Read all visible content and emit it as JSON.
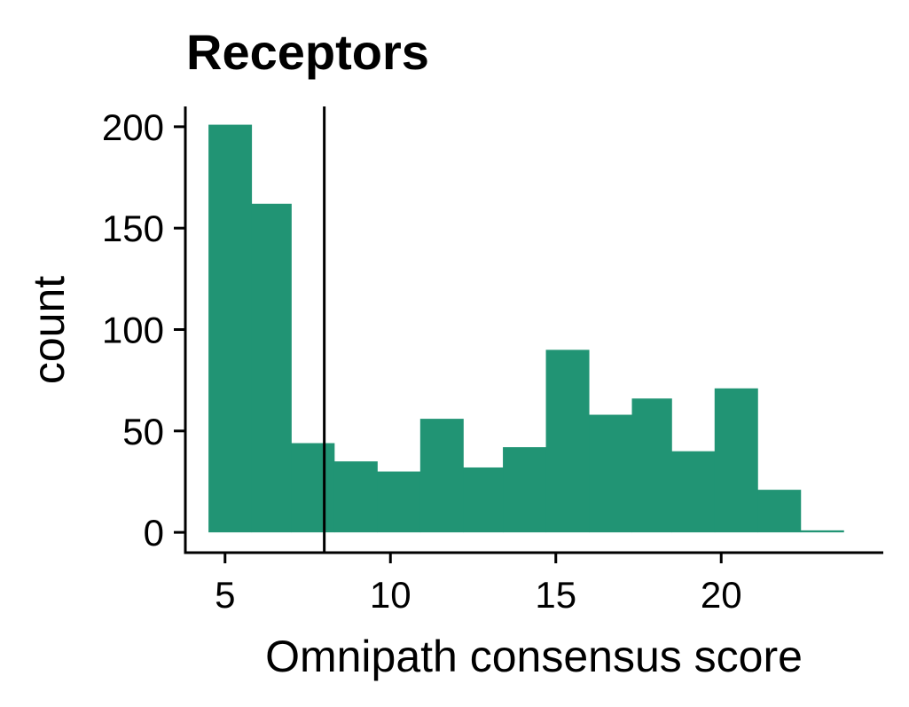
{
  "chart_data": {
    "type": "bar",
    "subtype": "histogram",
    "title": "Receptors",
    "xlabel": "Omnipath consensus score",
    "ylabel": "count",
    "xlim": [
      3.8,
      24.9
    ],
    "ylim": [
      -10,
      210
    ],
    "xticks": [
      5,
      10,
      15,
      20
    ],
    "yticks": [
      0,
      50,
      100,
      150,
      200
    ],
    "bins": [
      {
        "x0": 4.5,
        "x1": 5.8,
        "count": 201
      },
      {
        "x0": 5.8,
        "x1": 7.0,
        "count": 162
      },
      {
        "x0": 7.0,
        "x1": 8.3,
        "count": 44
      },
      {
        "x0": 8.3,
        "x1": 9.6,
        "count": 35
      },
      {
        "x0": 9.6,
        "x1": 10.9,
        "count": 30
      },
      {
        "x0": 10.9,
        "x1": 12.2,
        "count": 56
      },
      {
        "x0": 12.2,
        "x1": 13.4,
        "count": 32
      },
      {
        "x0": 13.4,
        "x1": 14.7,
        "count": 42
      },
      {
        "x0": 14.7,
        "x1": 16.0,
        "count": 90
      },
      {
        "x0": 16.0,
        "x1": 17.3,
        "count": 58
      },
      {
        "x0": 17.3,
        "x1": 18.5,
        "count": 66
      },
      {
        "x0": 18.5,
        "x1": 19.8,
        "count": 40
      },
      {
        "x0": 19.8,
        "x1": 21.1,
        "count": 71
      },
      {
        "x0": 21.1,
        "x1": 22.4,
        "count": 21
      },
      {
        "x0": 22.4,
        "x1": 23.7,
        "count": 1
      }
    ],
    "vline_x": 8,
    "colors": {
      "bar": "#219474",
      "line": "#000000"
    },
    "grid": false,
    "legend": "none"
  }
}
